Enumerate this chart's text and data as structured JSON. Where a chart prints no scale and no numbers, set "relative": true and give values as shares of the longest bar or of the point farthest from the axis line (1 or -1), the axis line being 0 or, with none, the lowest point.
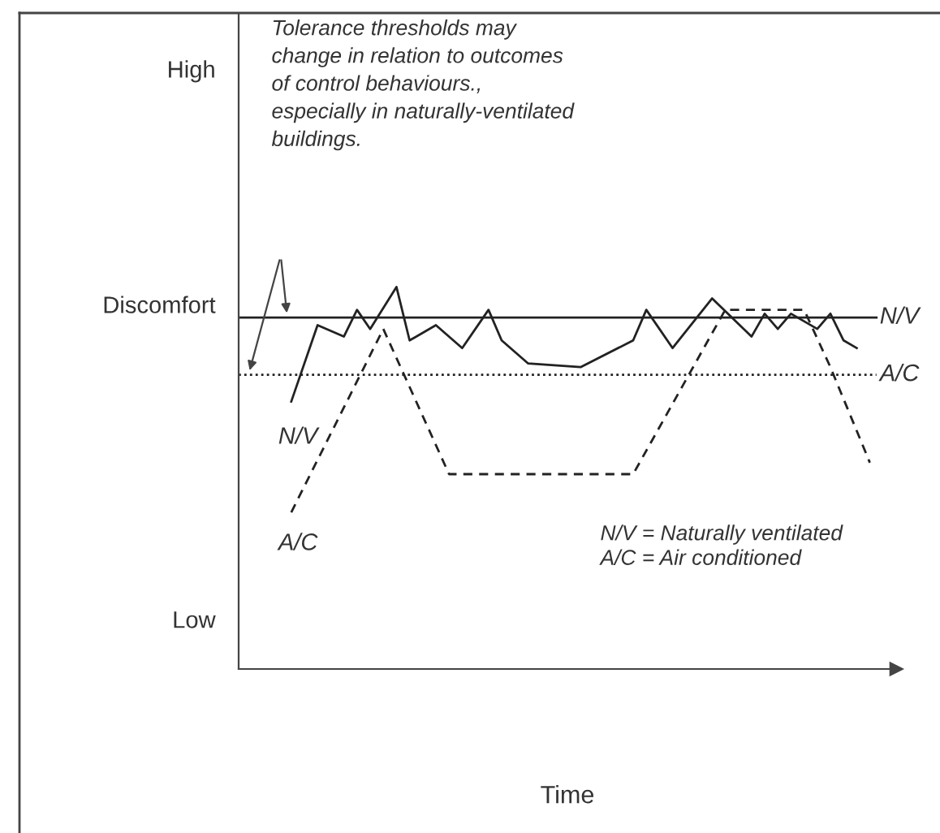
{
  "chart_data": {
    "type": "line",
    "xlabel": "Time",
    "categories": [
      null,
      null,
      null,
      null,
      null,
      null,
      null,
      null,
      null,
      null,
      null,
      null,
      null,
      null,
      null,
      null,
      null,
      null,
      null,
      null,
      null,
      null,
      null,
      null,
      null,
      null,
      null,
      null,
      null,
      null,
      null,
      null,
      null,
      null,
      null,
      null,
      null,
      null,
      null,
      null,
      null,
      null,
      null,
      null,
      null,
      null,
      null,
      null,
      null,
      null,
      null
    ],
    "relative": true,
    "grid": false,
    "series": [
      {
        "name": "N/V",
        "color": "#222222",
        "line_style": "solid",
        "values": [
          null,
          null,
          null,
          null,
          0.7,
          null,
          0.9,
          null,
          0.87,
          0.94,
          0.89,
          null,
          1.0,
          0.86,
          null,
          0.9,
          null,
          0.84,
          null,
          0.94,
          0.86,
          null,
          0.8,
          null,
          null,
          null,
          0.79,
          null,
          null,
          null,
          0.86,
          0.94,
          null,
          0.84,
          null,
          null,
          0.97,
          null,
          null,
          0.87,
          0.93,
          0.89,
          0.93,
          null,
          0.89,
          0.93,
          0.86,
          0.84,
          null,
          null,
          null
        ]
      },
      {
        "name": "A/C",
        "color": "#222222",
        "line_style": "dashed",
        "values": [
          null,
          null,
          null,
          null,
          0.41,
          null,
          null,
          null,
          null,
          null,
          null,
          0.89,
          null,
          null,
          null,
          null,
          0.51,
          null,
          null,
          null,
          null,
          null,
          null,
          null,
          null,
          null,
          null,
          null,
          null,
          null,
          0.51,
          null,
          null,
          null,
          null,
          null,
          null,
          0.94,
          null,
          null,
          null,
          null,
          null,
          0.94,
          null,
          0.79,
          null,
          null,
          0.54,
          null,
          null
        ]
      }
    ],
    "ref_lines": [
      {
        "axis": "y",
        "value": 0.92,
        "label": "N/V",
        "color": "#222222",
        "line_style": "solid"
      },
      {
        "axis": "y",
        "value": 0.77,
        "label": "A/C",
        "color": "#222222",
        "line_style": "dotted"
      }
    ],
    "annotations": [
      "Tolerance thresholds may\nchange in relation to outcomes\nof control behaviours.,\nespecially in naturally-ventilated\nbuildings.",
      "N/V = Naturally ventilated\nA/C = Air conditioned",
      "High",
      "Discomfort",
      "Low"
    ]
  }
}
